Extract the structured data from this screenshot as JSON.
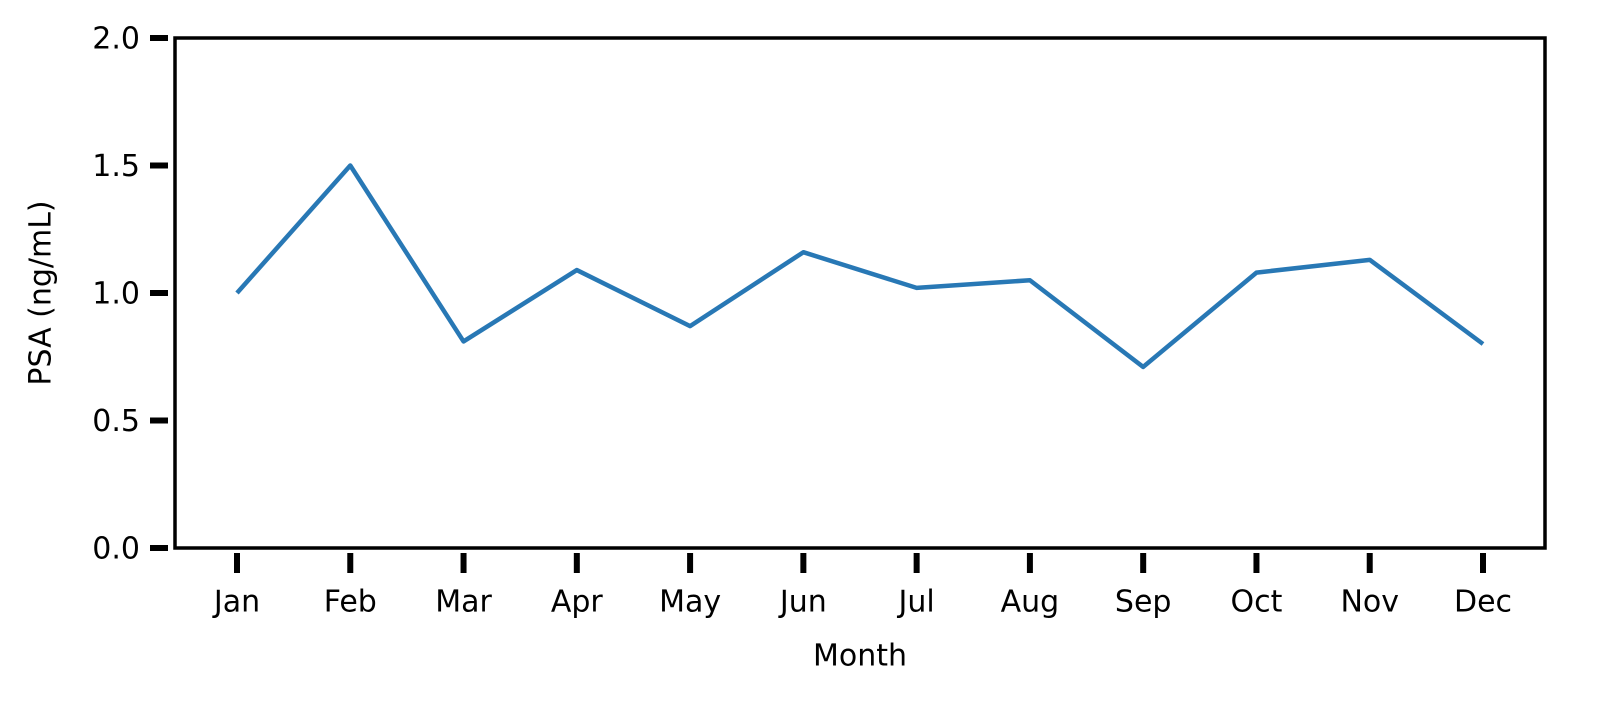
{
  "chart_data": {
    "type": "line",
    "x_label": "Month",
    "y_label": "PSA (ng/mL)",
    "categories": [
      "Jan",
      "Feb",
      "Mar",
      "Apr",
      "May",
      "Jun",
      "Jul",
      "Aug",
      "Sep",
      "Oct",
      "Nov",
      "Dec"
    ],
    "series": [
      {
        "name": "PSA",
        "color": "#2878b5",
        "values": [
          1.0,
          1.5,
          0.81,
          1.09,
          0.87,
          1.16,
          1.02,
          1.05,
          0.71,
          1.08,
          1.13,
          0.8
        ]
      }
    ],
    "ylim": [
      0,
      2
    ],
    "yticks": [
      {
        "value": 0,
        "label": "0.0"
      },
      0.5,
      {
        "value": 1,
        "label": "1.0"
      },
      1.5,
      {
        "value": 2,
        "label": "2.0"
      }
    ],
    "grid": false,
    "legend": false
  }
}
